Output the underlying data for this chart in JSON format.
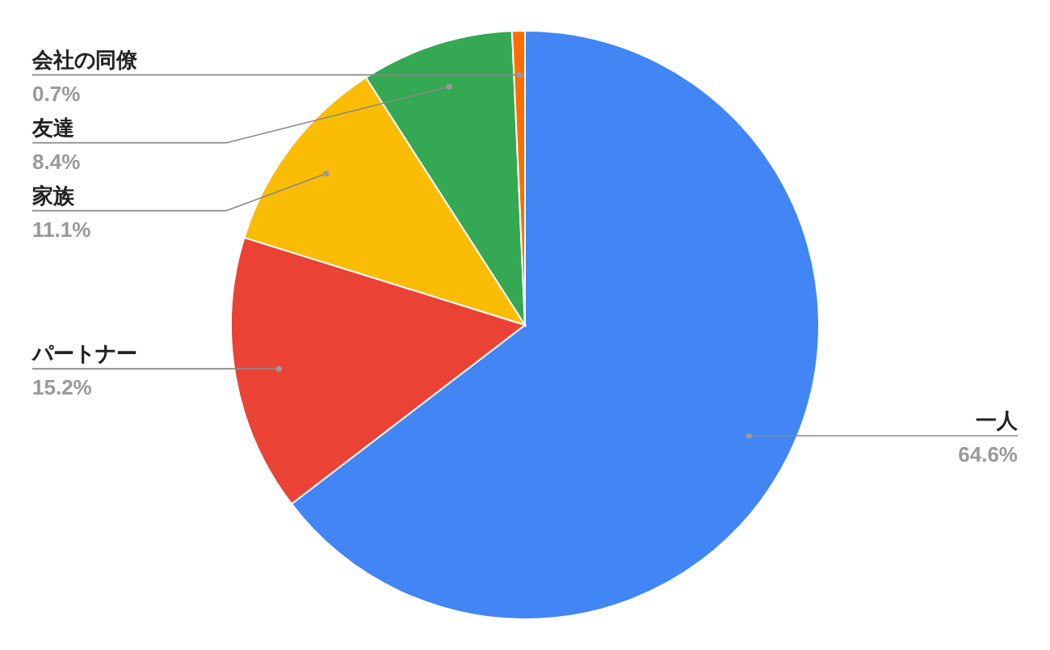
{
  "chart_data": {
    "type": "pie",
    "categories": [
      "一人",
      "パートナー",
      "家族",
      "友達",
      "会社の同僚"
    ],
    "values": [
      64.6,
      15.2,
      11.1,
      8.4,
      0.7
    ],
    "value_labels": [
      "64.6%",
      "15.2%",
      "11.1%",
      "8.4%",
      "0.7%"
    ],
    "colors": [
      "#4285f4",
      "#ea4335",
      "#fbbc04",
      "#34a853",
      "#ff6d01"
    ],
    "legend": false
  }
}
